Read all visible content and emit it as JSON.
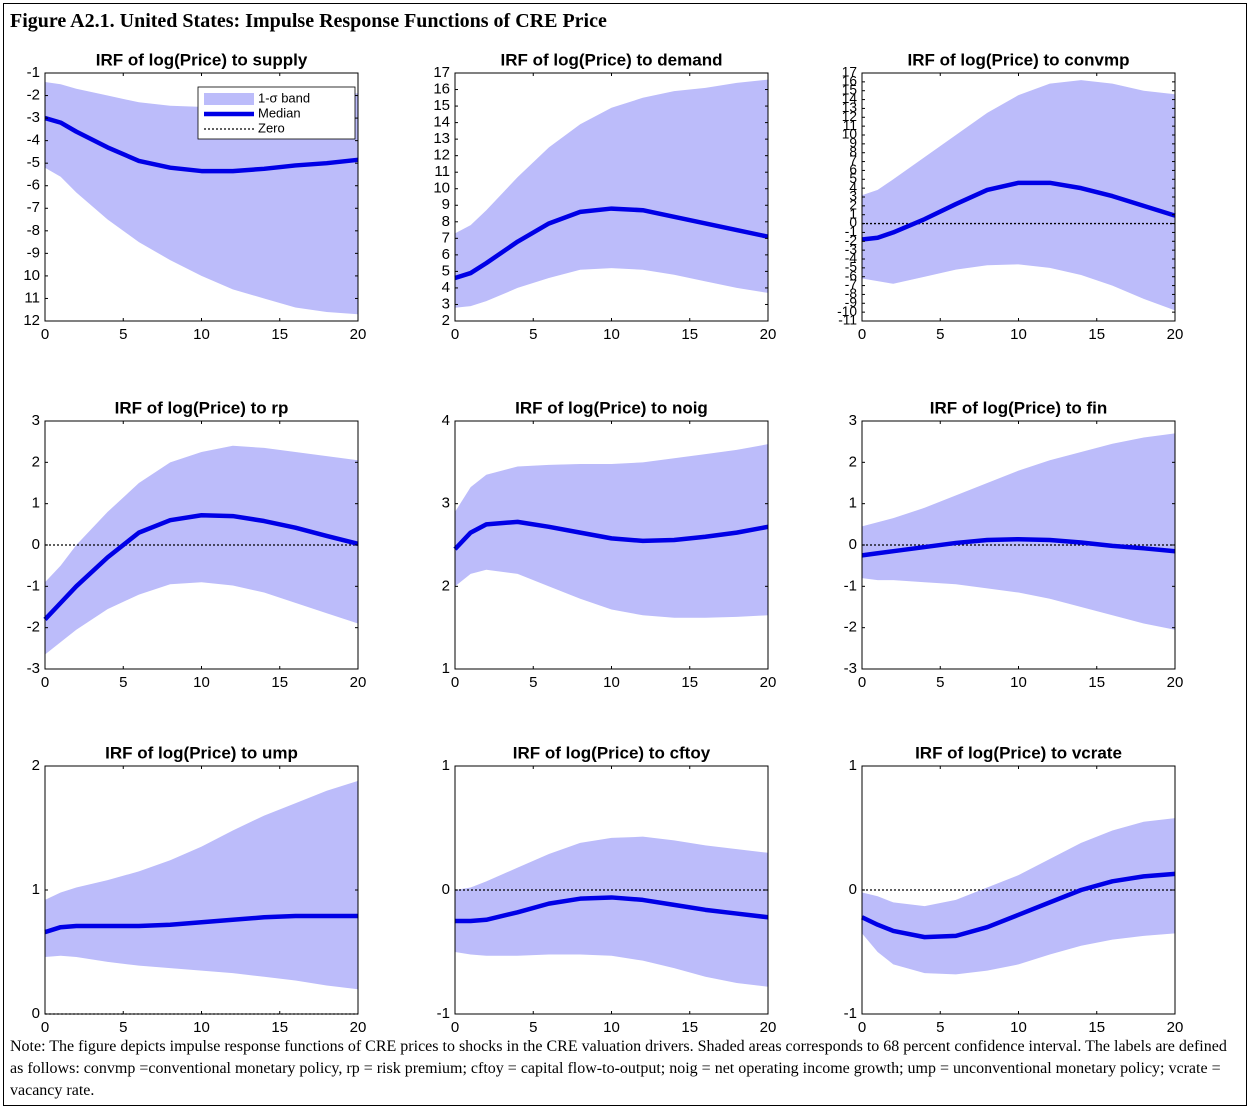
{
  "title": "Figure A2.1. United States: Impulse Response Functions of CRE Price",
  "note": "Note: The figure depicts impulse response functions of CRE prices to shocks in the CRE valuation drivers. Shaded areas corresponds to 68 percent confidence interval. The labels are defined as follows: convmp =conventional monetary policy, rp = risk premium; cftoy = capital flow-to-output; noig = net operating income growth; ump = unconventional monetary policy; vcrate = vacancy rate.",
  "chart_data": [
    {
      "type": "line",
      "title": "IRF of log(Price) to supply",
      "x": [
        0,
        1,
        2,
        4,
        6,
        8,
        10,
        12,
        14,
        16,
        18,
        20
      ],
      "xlim": [
        0,
        20
      ],
      "xticks": [
        0,
        5,
        10,
        15,
        20
      ],
      "ylim": [
        -12,
        -1
      ],
      "yticks": [
        -1,
        -2,
        -3,
        -4,
        -5,
        -6,
        -7,
        -8,
        -9,
        {
          "value": -10,
          "label": "10"
        },
        {
          "value": -11,
          "label": "11"
        },
        {
          "value": -12,
          "label": "12"
        }
      ],
      "y_reversed": false,
      "band": {
        "color": "#bcbcfa",
        "upper": [
          -1.4,
          -1.5,
          -1.7,
          -2.0,
          -2.3,
          -2.45,
          -2.5,
          -2.45,
          -2.3,
          -2.1,
          -2.0,
          -1.9
        ],
        "lower": [
          -5.2,
          -5.6,
          -6.3,
          -7.5,
          -8.5,
          -9.3,
          -10.0,
          -10.6,
          -11.0,
          -11.4,
          -11.6,
          -11.7
        ]
      },
      "series": [
        {
          "color": "#0000e6",
          "values": [
            -3,
            -3.2,
            -3.6,
            -4.3,
            -4.9,
            -5.2,
            -5.35,
            -5.35,
            -5.25,
            -5.1,
            -5.0,
            -4.85
          ]
        }
      ],
      "zero_line": true,
      "legend": {
        "position": "upper right",
        "band": "1-σ band",
        "median": "Median",
        "zero": "Zero"
      }
    },
    {
      "type": "line",
      "title": "IRF of log(Price) to demand",
      "x": [
        0,
        1,
        2,
        4,
        6,
        8,
        10,
        12,
        14,
        16,
        18,
        20
      ],
      "xlim": [
        0,
        20
      ],
      "xticks": [
        0,
        5,
        10,
        15,
        20
      ],
      "ylim": [
        2,
        17
      ],
      "yticks": [
        2,
        3,
        4,
        5,
        6,
        7,
        8,
        9,
        10,
        11,
        12,
        13,
        14,
        15,
        16,
        17
      ],
      "band": {
        "color": "#bcbcfa",
        "upper": [
          7.3,
          7.8,
          8.7,
          10.7,
          12.5,
          13.9,
          14.9,
          15.5,
          15.9,
          16.1,
          16.4,
          16.6
        ],
        "lower": [
          2.8,
          2.9,
          3.2,
          4.0,
          4.6,
          5.1,
          5.2,
          5.1,
          4.8,
          4.4,
          4.0,
          3.7
        ]
      },
      "series": [
        {
          "color": "#0000e6",
          "values": [
            4.6,
            4.9,
            5.5,
            6.8,
            7.9,
            8.6,
            8.8,
            8.7,
            8.3,
            7.9,
            7.5,
            7.1
          ]
        }
      ],
      "zero_line": true
    },
    {
      "type": "line",
      "title": "IRF of log(Price) to convmp",
      "x": [
        0,
        1,
        2,
        4,
        6,
        8,
        10,
        12,
        14,
        16,
        18,
        20
      ],
      "xlim": [
        0,
        20
      ],
      "xticks": [
        0,
        5,
        10,
        15,
        20
      ],
      "ylim": [
        -11,
        17
      ],
      "yticks": [
        -11,
        -10,
        -9,
        -8,
        -7,
        -6,
        -5,
        -4,
        -3,
        -2,
        -1,
        0,
        1,
        2,
        3,
        4,
        5,
        6,
        7,
        8,
        9,
        10,
        11,
        12,
        13,
        14,
        15,
        16,
        17
      ],
      "band": {
        "color": "#bcbcfa",
        "upper": [
          3.2,
          3.8,
          5.0,
          7.5,
          10.0,
          12.5,
          14.5,
          15.8,
          16.2,
          15.8,
          15.0,
          14.6
        ],
        "lower": [
          -6.2,
          -6.5,
          -6.8,
          -6.0,
          -5.2,
          -4.7,
          -4.6,
          -5.0,
          -5.8,
          -7.0,
          -8.5,
          -9.8
        ]
      },
      "series": [
        {
          "color": "#0000e6",
          "values": [
            -1.8,
            -1.6,
            -1.0,
            0.5,
            2.2,
            3.8,
            4.6,
            4.6,
            4.0,
            3.1,
            2.0,
            0.9
          ]
        }
      ],
      "zero_line": true
    },
    {
      "type": "line",
      "title": "IRF of log(Price) to rp",
      "x": [
        0,
        1,
        2,
        4,
        6,
        8,
        10,
        12,
        14,
        16,
        18,
        20
      ],
      "xlim": [
        0,
        20
      ],
      "xticks": [
        0,
        5,
        10,
        15,
        20
      ],
      "ylim": [
        -3,
        3
      ],
      "yticks": [
        -3,
        -2,
        -1,
        0,
        1,
        2,
        3
      ],
      "band": {
        "color": "#bcbcfa",
        "upper": [
          -0.9,
          -0.5,
          0.0,
          0.8,
          1.5,
          2.0,
          2.25,
          2.4,
          2.35,
          2.25,
          2.15,
          2.05
        ],
        "lower": [
          -2.65,
          -2.35,
          -2.05,
          -1.55,
          -1.2,
          -0.95,
          -0.9,
          -0.98,
          -1.15,
          -1.4,
          -1.65,
          -1.9
        ]
      },
      "series": [
        {
          "color": "#0000e6",
          "values": [
            -1.8,
            -1.4,
            -1.0,
            -0.3,
            0.3,
            0.6,
            0.72,
            0.7,
            0.58,
            0.42,
            0.22,
            0.03
          ]
        }
      ],
      "zero_line": true
    },
    {
      "type": "line",
      "title": "IRF of log(Price) to noig",
      "x": [
        0,
        1,
        2,
        4,
        6,
        8,
        10,
        12,
        14,
        16,
        18,
        20
      ],
      "xlim": [
        0,
        20
      ],
      "xticks": [
        0,
        5,
        10,
        15,
        20
      ],
      "ylim": [
        1,
        4
      ],
      "yticks": [
        1,
        2,
        3,
        4
      ],
      "band": {
        "color": "#bcbcfa",
        "upper": [
          2.9,
          3.2,
          3.35,
          3.45,
          3.47,
          3.48,
          3.48,
          3.5,
          3.55,
          3.6,
          3.65,
          3.72
        ],
        "lower": [
          2.0,
          2.15,
          2.2,
          2.15,
          2.0,
          1.85,
          1.72,
          1.65,
          1.62,
          1.62,
          1.63,
          1.65
        ]
      },
      "series": [
        {
          "color": "#0000e6",
          "values": [
            2.45,
            2.65,
            2.75,
            2.78,
            2.72,
            2.65,
            2.58,
            2.55,
            2.56,
            2.6,
            2.65,
            2.72
          ]
        }
      ],
      "zero_line": true
    },
    {
      "type": "line",
      "title": "IRF of log(Price) to fin",
      "x": [
        0,
        1,
        2,
        4,
        6,
        8,
        10,
        12,
        14,
        16,
        18,
        20
      ],
      "xlim": [
        0,
        20
      ],
      "xticks": [
        0,
        5,
        10,
        15,
        20
      ],
      "ylim": [
        -3,
        3
      ],
      "yticks": [
        -3,
        -2,
        -1,
        0,
        1,
        2,
        3
      ],
      "band": {
        "color": "#bcbcfa",
        "upper": [
          0.45,
          0.55,
          0.65,
          0.9,
          1.2,
          1.5,
          1.8,
          2.05,
          2.25,
          2.45,
          2.6,
          2.7
        ],
        "lower": [
          -0.8,
          -0.85,
          -0.85,
          -0.9,
          -0.95,
          -1.05,
          -1.15,
          -1.3,
          -1.5,
          -1.7,
          -1.9,
          -2.05
        ]
      },
      "series": [
        {
          "color": "#0000e6",
          "values": [
            -0.25,
            -0.2,
            -0.15,
            -0.05,
            0.05,
            0.12,
            0.14,
            0.12,
            0.06,
            -0.02,
            -0.08,
            -0.15
          ]
        }
      ],
      "zero_line": true
    },
    {
      "type": "line",
      "title": "IRF of log(Price) to ump",
      "x": [
        0,
        1,
        2,
        4,
        6,
        8,
        10,
        12,
        14,
        16,
        18,
        20
      ],
      "xlim": [
        0,
        20
      ],
      "xticks": [
        0,
        5,
        10,
        15,
        20
      ],
      "ylim": [
        0,
        2
      ],
      "yticks": [
        0,
        1,
        2
      ],
      "band": {
        "color": "#bcbcfa",
        "upper": [
          0.92,
          0.98,
          1.02,
          1.08,
          1.15,
          1.24,
          1.35,
          1.48,
          1.6,
          1.7,
          1.8,
          1.88
        ],
        "lower": [
          0.46,
          0.47,
          0.46,
          0.42,
          0.39,
          0.37,
          0.35,
          0.33,
          0.3,
          0.27,
          0.23,
          0.2
        ]
      },
      "series": [
        {
          "color": "#0000e6",
          "values": [
            0.66,
            0.7,
            0.71,
            0.71,
            0.71,
            0.72,
            0.74,
            0.76,
            0.78,
            0.79,
            0.79,
            0.79
          ]
        }
      ],
      "zero_line": true
    },
    {
      "type": "line",
      "title": "IRF of log(Price) to cftoy",
      "x": [
        0,
        1,
        2,
        4,
        6,
        8,
        10,
        12,
        14,
        16,
        18,
        20
      ],
      "xlim": [
        0,
        20
      ],
      "xticks": [
        0,
        5,
        10,
        15,
        20
      ],
      "ylim": [
        -1,
        1
      ],
      "yticks": [
        -1,
        0,
        1
      ],
      "band": {
        "color": "#bcbcfa",
        "upper": [
          0.0,
          0.02,
          0.07,
          0.18,
          0.29,
          0.38,
          0.42,
          0.43,
          0.4,
          0.36,
          0.33,
          0.3
        ],
        "lower": [
          -0.5,
          -0.52,
          -0.53,
          -0.53,
          -0.52,
          -0.52,
          -0.53,
          -0.57,
          -0.63,
          -0.7,
          -0.75,
          -0.78
        ]
      },
      "series": [
        {
          "color": "#0000e6",
          "values": [
            -0.25,
            -0.25,
            -0.24,
            -0.18,
            -0.11,
            -0.07,
            -0.06,
            -0.08,
            -0.12,
            -0.16,
            -0.19,
            -0.22
          ]
        }
      ],
      "zero_line": true
    },
    {
      "type": "line",
      "title": "IRF of log(Price) to vcrate",
      "x": [
        0,
        1,
        2,
        4,
        6,
        8,
        10,
        12,
        14,
        16,
        18,
        20
      ],
      "xlim": [
        0,
        20
      ],
      "xticks": [
        0,
        5,
        10,
        15,
        20
      ],
      "ylim": [
        -1,
        1
      ],
      "yticks": [
        -1,
        0,
        1
      ],
      "band": {
        "color": "#bcbcfa",
        "upper": [
          -0.02,
          -0.05,
          -0.1,
          -0.13,
          -0.08,
          0.02,
          0.12,
          0.25,
          0.38,
          0.48,
          0.55,
          0.58
        ],
        "lower": [
          -0.35,
          -0.5,
          -0.6,
          -0.67,
          -0.68,
          -0.65,
          -0.6,
          -0.52,
          -0.45,
          -0.4,
          -0.37,
          -0.35
        ]
      },
      "series": [
        {
          "color": "#0000e6",
          "values": [
            -0.22,
            -0.28,
            -0.33,
            -0.38,
            -0.37,
            -0.3,
            -0.2,
            -0.1,
            0.0,
            0.07,
            0.11,
            0.13
          ]
        }
      ],
      "zero_line": true
    }
  ]
}
